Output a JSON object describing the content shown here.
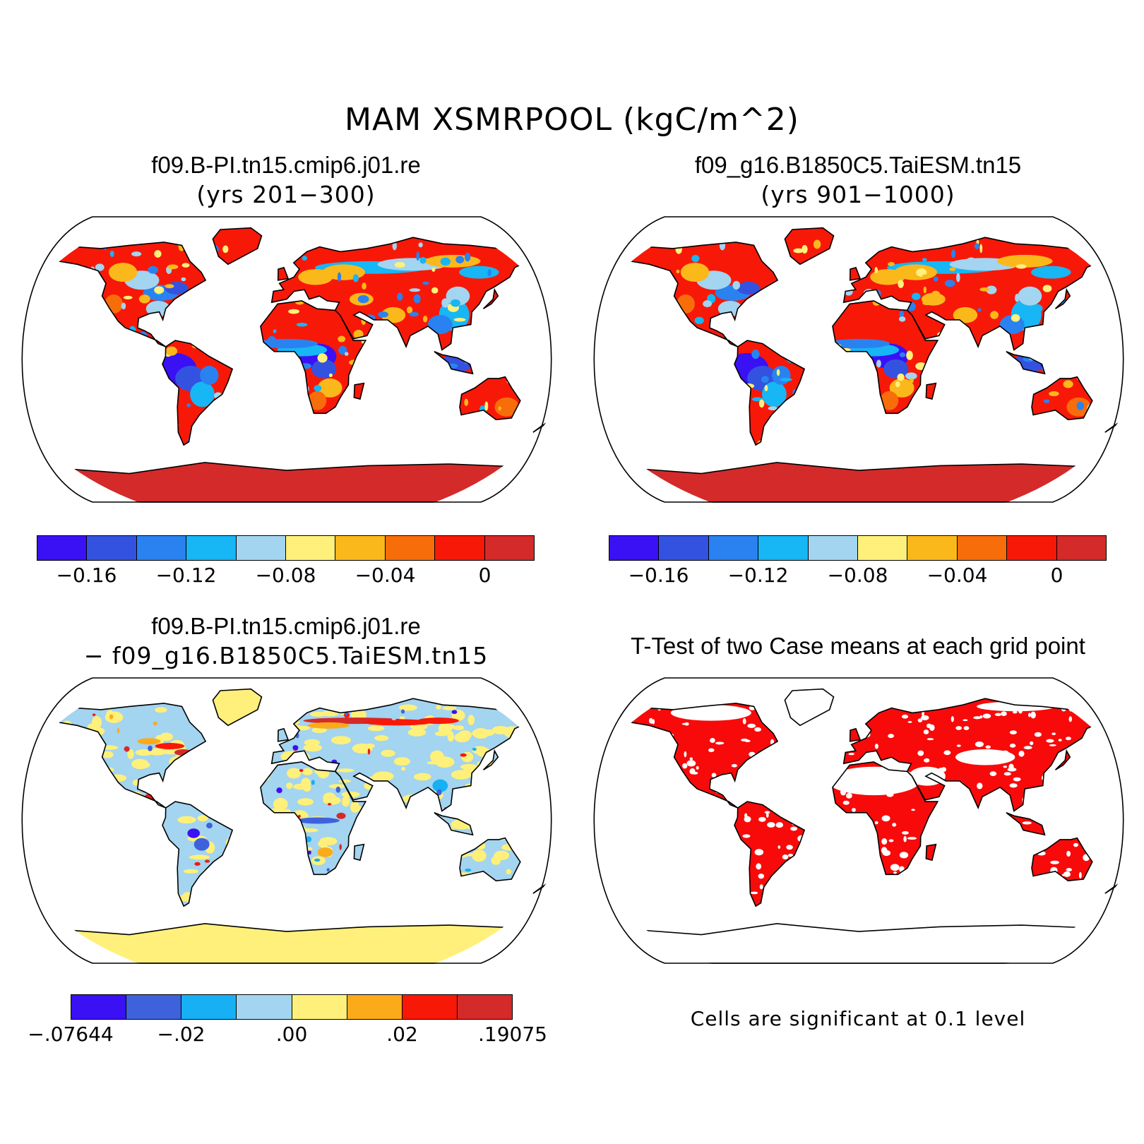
{
  "figure": {
    "title": "MAM XSMRPOOL (kgC/m^2)"
  },
  "panels": {
    "top_left": {
      "title": "f09.B-PI.tn15.cmip6.j01.re",
      "subtitle": "(yrs 201−300)",
      "colorbar": {
        "colors": [
          "#3a10f5",
          "#3452e0",
          "#2a82f0",
          "#17b6f5",
          "#a3d4f0",
          "#fef07a",
          "#fbb81a",
          "#f76d0a",
          "#f81808",
          "#d42a2a"
        ],
        "tick_labels": [
          "−0.16",
          "−0.12",
          "−0.08",
          "−0.04",
          "0"
        ]
      }
    },
    "top_right": {
      "title": "f09_g16.B1850C5.TaiESM.tn15",
      "subtitle": "(yrs 901−1000)",
      "colorbar": {
        "colors": [
          "#3a10f5",
          "#3452e0",
          "#2a82f0",
          "#17b6f5",
          "#a3d4f0",
          "#fef07a",
          "#fbb81a",
          "#f76d0a",
          "#f81808",
          "#d42a2a"
        ],
        "tick_labels": [
          "−0.16",
          "−0.12",
          "−0.08",
          "−0.04",
          "0"
        ]
      }
    },
    "bottom_left": {
      "title": "f09.B-PI.tn15.cmip6.j01.re",
      "subtitle": "− f09_g16.B1850C5.TaiESM.tn15",
      "colorbar": {
        "colors": [
          "#3a10f5",
          "#3e62dc",
          "#17b0f5",
          "#a3d4f0",
          "#fef07a",
          "#fbaa1a",
          "#f81808",
          "#d42a2a"
        ],
        "tick_labels": [
          "−.07644",
          "−.02",
          ".00",
          ".02",
          ".19075"
        ]
      }
    },
    "bottom_right": {
      "title": "T-Test of two Case means at each grid point",
      "note": "Cells are significant at 0.1 level",
      "significant_color": "#f80a0a"
    }
  },
  "map": {
    "projection": "Robinson",
    "ocean_color": "#ffffff",
    "coastline_color": "#000000"
  }
}
